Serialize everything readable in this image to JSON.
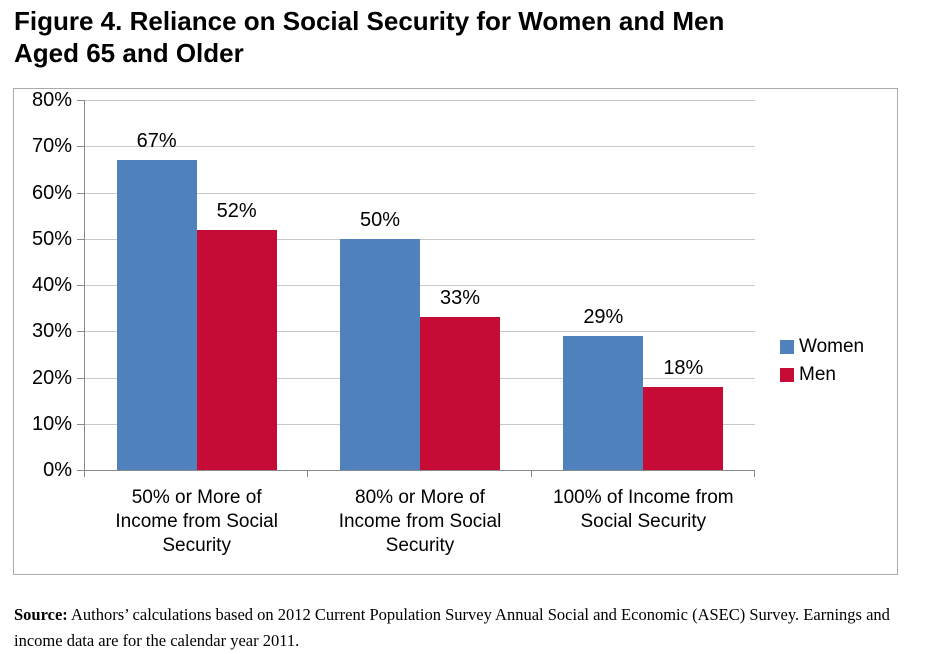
{
  "figure": {
    "title_lines": [
      "Figure 4. Reliance on Social Security for Women and Men",
      "Aged 65 and Older"
    ],
    "source_prefix": "Source:",
    "source_text": "Authors’ calculations based on 2012 Current Population Survey Annual Social and Economic (ASEC) Survey. Earnings and income data are for the calendar year 2011."
  },
  "colors": {
    "women_bar": "#4F81BD",
    "men_bar": "#C60C36",
    "gridline": "#C9C9C9",
    "axis_line": "#8A8A8A",
    "chart_border": "#ABABAB",
    "text": "#000000"
  },
  "chart_data": {
    "type": "bar",
    "title": "Figure 4. Reliance on Social Security for Women and Men Aged 65 and Older",
    "categories": [
      "50% or More of Income from Social Security",
      "80% or More of Income from Social Security",
      "100% of Income from Social Security"
    ],
    "series": [
      {
        "name": "Women",
        "color": "#4F81BD",
        "values": [
          67,
          50,
          29
        ]
      },
      {
        "name": "Men",
        "color": "#C60C36",
        "values": [
          52,
          33,
          18
        ]
      }
    ],
    "value_suffix": "%",
    "data_labels": true,
    "ylim": [
      0,
      80
    ],
    "ytick_step": 10,
    "ytick_labels": [
      "0%",
      "10%",
      "20%",
      "30%",
      "40%",
      "50%",
      "60%",
      "70%",
      "80%"
    ],
    "grid": true,
    "legend_position": "right"
  }
}
